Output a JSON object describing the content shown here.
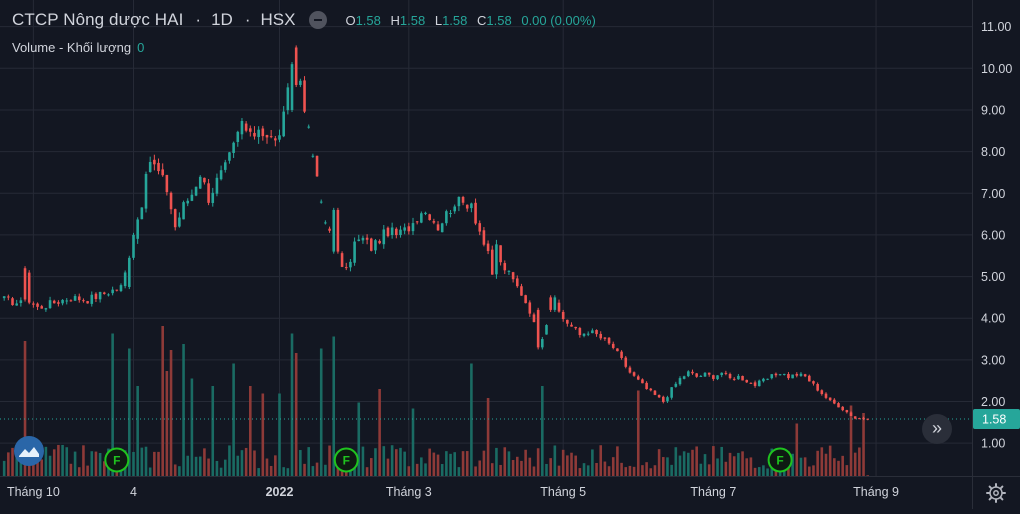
{
  "legend": {
    "title": "CTCP Nông dược HAI",
    "interval": "1D",
    "exchange": "HSX",
    "ohlc": [
      {
        "key": "O",
        "value": "1.58"
      },
      {
        "key": "H",
        "value": "1.58"
      },
      {
        "key": "L",
        "value": "1.58"
      },
      {
        "key": "C",
        "value": "1.58"
      }
    ],
    "change": "0.00 (0.00%)",
    "volume_label": "Volume - Khối lượng",
    "volume_value": "0"
  },
  "colors": {
    "background": "#131722",
    "up": "#26a69a",
    "down": "#ef5350",
    "up_volume": "#1a6b63",
    "down_volume": "#8e3a38",
    "price_label_bg": "#26a69a",
    "text": "#d1d4dc",
    "grid": "#262a36",
    "earnings_marker": "#1fc31f"
  },
  "icons": {
    "hide": "minus-circle-icon",
    "scroll": "double-chevron-right-icon",
    "settings": "gear-icon",
    "logo": "brand-logo-icon",
    "earnings": "earnings-f-icon"
  },
  "earnings_label": "F",
  "chart_data": {
    "type": "candlestick",
    "title": "CTCP Nông dược HAI",
    "price_axis": {
      "ticks": [
        1.0,
        2.0,
        3.0,
        4.0,
        5.0,
        6.0,
        7.0,
        8.0,
        9.0,
        10.0,
        11.0
      ],
      "tick_labels": [
        "1.00",
        "2.00",
        "3.00",
        "4.00",
        "5.00",
        "6.00",
        "7.00",
        "8.00",
        "9.00",
        "10.00",
        "11.00"
      ],
      "range": [
        0.5,
        11.4
      ]
    },
    "time_axis": {
      "labels": [
        {
          "label": "Tháng 10",
          "bold": false,
          "t": 7
        },
        {
          "label": "4",
          "bold": false,
          "t": 31
        },
        {
          "label": "2022",
          "bold": true,
          "t": 66
        },
        {
          "label": "Tháng 3",
          "bold": false,
          "t": 97
        },
        {
          "label": "Tháng 5",
          "bold": false,
          "t": 134
        },
        {
          "label": "Tháng 7",
          "bold": false,
          "t": 170
        },
        {
          "label": "Tháng 9",
          "bold": false,
          "t": 209
        }
      ],
      "range": [
        -1,
        232
      ]
    },
    "last_price": 1.58,
    "last_price_label": "1.58",
    "path": [
      [
        0,
        4.45
      ],
      [
        4,
        4.35
      ],
      [
        5,
        5.2
      ],
      [
        6,
        4.4
      ],
      [
        8,
        4.25
      ],
      [
        12,
        4.38
      ],
      [
        16,
        4.5
      ],
      [
        20,
        4.45
      ],
      [
        24,
        4.6
      ],
      [
        28,
        4.75
      ],
      [
        30,
        5.4
      ],
      [
        31,
        6.0
      ],
      [
        33,
        6.8
      ],
      [
        35,
        7.8
      ],
      [
        37,
        7.5
      ],
      [
        39,
        7.1
      ],
      [
        41,
        6.2
      ],
      [
        43,
        6.7
      ],
      [
        45,
        7.0
      ],
      [
        47,
        7.5
      ],
      [
        49,
        6.9
      ],
      [
        51,
        7.3
      ],
      [
        53,
        7.6
      ],
      [
        55,
        8.1
      ],
      [
        57,
        8.7
      ],
      [
        59,
        8.3
      ],
      [
        61,
        8.6
      ],
      [
        63,
        8.4
      ],
      [
        65,
        8.2
      ],
      [
        67,
        8.8
      ],
      [
        69,
        9.9
      ],
      [
        70,
        10.1
      ],
      [
        71,
        9.7
      ],
      [
        73,
        8.6
      ],
      [
        74,
        7.9
      ],
      [
        75,
        7.3
      ],
      [
        76,
        6.8
      ],
      [
        77,
        6.3
      ],
      [
        78,
        6.1
      ],
      [
        79,
        5.8
      ],
      [
        80,
        5.5
      ],
      [
        82,
        5.1
      ],
      [
        84,
        5.8
      ],
      [
        86,
        5.9
      ],
      [
        88,
        5.7
      ],
      [
        90,
        5.9
      ],
      [
        92,
        6.1
      ],
      [
        94,
        6.0
      ],
      [
        96,
        6.1
      ],
      [
        98,
        6.3
      ],
      [
        100,
        6.6
      ],
      [
        102,
        6.5
      ],
      [
        104,
        6.2
      ],
      [
        106,
        6.5
      ],
      [
        108,
        6.8
      ],
      [
        110,
        6.75
      ],
      [
        112,
        6.8
      ],
      [
        113,
        6.4
      ],
      [
        114,
        6.1
      ],
      [
        116,
        5.5
      ],
      [
        117,
        5.0
      ],
      [
        118,
        5.8
      ],
      [
        119,
        5.3
      ],
      [
        120,
        5.2
      ],
      [
        122,
        4.9
      ],
      [
        124,
        4.6
      ],
      [
        126,
        4.2
      ],
      [
        128,
        3.5
      ],
      [
        130,
        3.9
      ],
      [
        132,
        4.3
      ],
      [
        134,
        4.0
      ],
      [
        136,
        3.8
      ],
      [
        138,
        3.6
      ],
      [
        140,
        3.7
      ],
      [
        142,
        3.6
      ],
      [
        144,
        3.45
      ],
      [
        146,
        3.3
      ],
      [
        148,
        3.0
      ],
      [
        150,
        2.7
      ],
      [
        152,
        2.5
      ],
      [
        154,
        2.3
      ],
      [
        156,
        2.15
      ],
      [
        158,
        2.0
      ],
      [
        160,
        2.3
      ],
      [
        162,
        2.55
      ],
      [
        164,
        2.7
      ],
      [
        166,
        2.6
      ],
      [
        168,
        2.65
      ],
      [
        170,
        2.6
      ],
      [
        172,
        2.7
      ],
      [
        174,
        2.55
      ],
      [
        176,
        2.6
      ],
      [
        178,
        2.5
      ],
      [
        180,
        2.4
      ],
      [
        182,
        2.5
      ],
      [
        184,
        2.6
      ],
      [
        186,
        2.7
      ],
      [
        188,
        2.6
      ],
      [
        190,
        2.65
      ],
      [
        192,
        2.6
      ],
      [
        194,
        2.4
      ],
      [
        196,
        2.2
      ],
      [
        198,
        2.0
      ],
      [
        200,
        1.9
      ],
      [
        202,
        1.75
      ],
      [
        204,
        1.6
      ],
      [
        206,
        1.6
      ],
      [
        207,
        1.58
      ]
    ],
    "drops": [
      [
        5,
        5.2,
        4.45
      ],
      [
        30,
        4.75,
        5.45
      ],
      [
        31,
        5.45,
        6.0
      ],
      [
        69,
        9.0,
        10.1
      ],
      [
        70,
        10.5,
        9.6
      ],
      [
        71,
        9.6,
        9.7
      ],
      [
        73,
        8.6,
        8.6
      ],
      [
        74,
        7.9,
        7.9
      ],
      [
        76,
        6.8,
        6.8
      ],
      [
        77,
        6.3,
        6.3
      ],
      [
        78,
        6.15,
        6.1
      ],
      [
        79,
        5.6,
        6.6
      ],
      [
        80,
        6.6,
        5.6
      ],
      [
        128,
        4.2,
        3.3
      ],
      [
        129,
        3.3,
        3.5
      ],
      [
        131,
        4.5,
        4.2
      ],
      [
        132,
        4.2,
        4.5
      ]
    ],
    "volume": {
      "spikes": [
        [
          5,
          9
        ],
        [
          26,
          9.5
        ],
        [
          30,
          8.5
        ],
        [
          32,
          6
        ],
        [
          38,
          10
        ],
        [
          39,
          7
        ],
        [
          40,
          8.4
        ],
        [
          43,
          8.8
        ],
        [
          45,
          6.5
        ],
        [
          50,
          6
        ],
        [
          55,
          7.5
        ],
        [
          59,
          6
        ],
        [
          62,
          5.5
        ],
        [
          66,
          5.5
        ],
        [
          69,
          9.5
        ],
        [
          70,
          8.2
        ],
        [
          76,
          8.5
        ],
        [
          79,
          9.3
        ],
        [
          85,
          4.9
        ],
        [
          90,
          5.8
        ],
        [
          98,
          4.5
        ],
        [
          112,
          7.5
        ],
        [
          116,
          5.2
        ],
        [
          129,
          6
        ],
        [
          152,
          5.7
        ],
        [
          190,
          3.5
        ],
        [
          203,
          4.7
        ],
        [
          206,
          4.2
        ]
      ]
    }
  }
}
